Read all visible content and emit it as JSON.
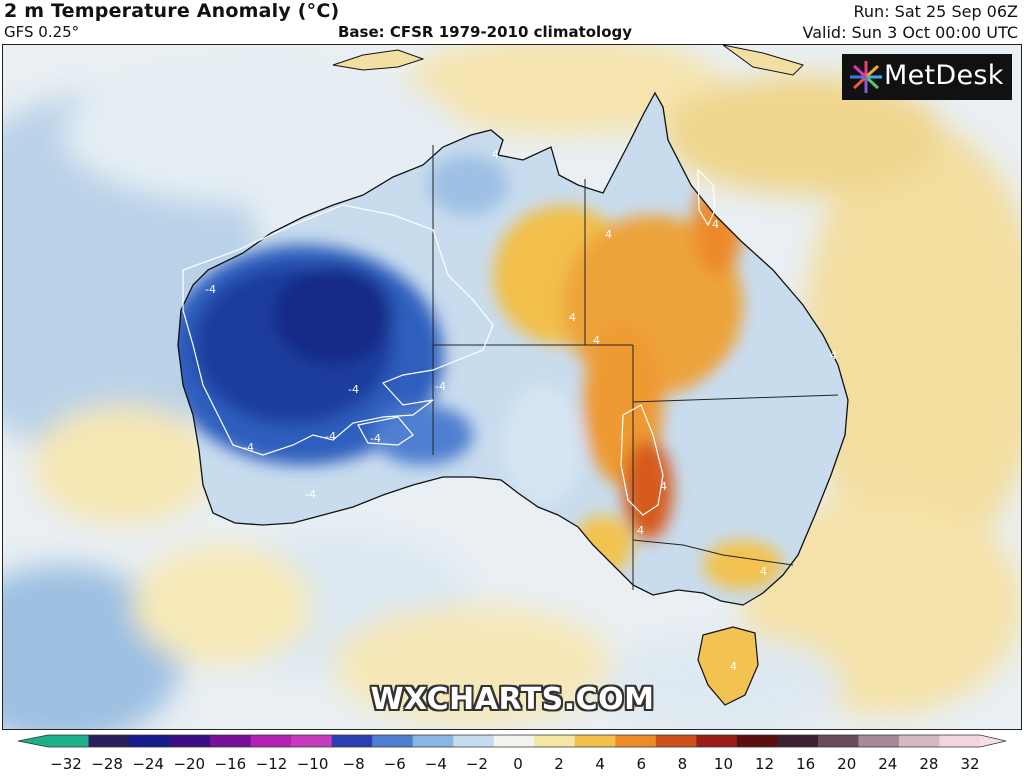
{
  "header": {
    "title": "2 m Temperature Anomaly (°C)",
    "model": "GFS 0.25°",
    "base": "Base: CFSR 1979-2010 climatology",
    "run": "Run: Sat 25 Sep 06Z",
    "valid": "Valid: Sun 3 Oct 00:00 UTC"
  },
  "logo": {
    "text": "MetDesk",
    "icon": "metdesk-burst-icon"
  },
  "watermark": "WXCHARTS.COM",
  "contour_labels": [
    "4",
    "-4",
    "-4",
    "-4",
    "-4",
    "-4",
    "-4",
    "-4",
    "4",
    "4",
    "4",
    "4",
    "4",
    "4",
    "4",
    "4",
    "4"
  ],
  "colorbar": {
    "ticks": [
      "−32",
      "−28",
      "−24",
      "−20",
      "−16",
      "−12",
      "−10",
      "−8",
      "−6",
      "−4",
      "−2",
      "0",
      "2",
      "4",
      "6",
      "8",
      "10",
      "12",
      "16",
      "20",
      "24",
      "28",
      "32"
    ],
    "colors": [
      "#1bb08a",
      "#28205a",
      "#161c8e",
      "#3a0f86",
      "#7a0f9a",
      "#b322b0",
      "#c73bbf",
      "#2a3fb4",
      "#4f7fd0",
      "#8ab6e2",
      "#c6dcee",
      "#f4f2ec",
      "#f6e6a4",
      "#f3c04a",
      "#ec8c22",
      "#d0501c",
      "#9a1e16",
      "#5a0e0e",
      "#3a2030",
      "#6b4a5a",
      "#a98898",
      "#d4b8c4",
      "#f0d6e0"
    ]
  }
}
